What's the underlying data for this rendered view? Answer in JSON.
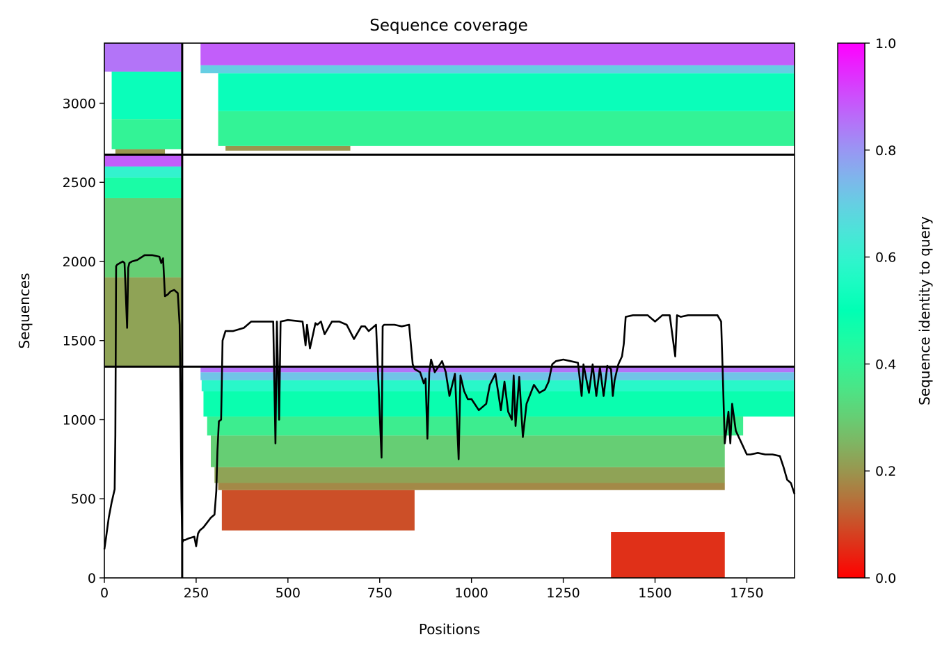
{
  "chart_data": {
    "type": "heatmap",
    "title": "Sequence coverage",
    "xlabel": "Positions",
    "ylabel": "Sequences",
    "xlim": [
      0,
      1880
    ],
    "ylim": [
      0,
      3380
    ],
    "xticks": [
      0,
      250,
      500,
      750,
      1000,
      1250,
      1500,
      1750
    ],
    "yticks": [
      0,
      500,
      1000,
      1500,
      2000,
      2500,
      3000
    ],
    "colorbar": {
      "label": "Sequence identity to query",
      "range": [
        0,
        1
      ],
      "ticks": [
        "0.0",
        "0.2",
        "0.4",
        "0.6",
        "0.8",
        "1.0"
      ],
      "colormap": "rainbow_r"
    },
    "separators": {
      "vertical": [
        212
      ],
      "horizontal": [
        1335,
        2675
      ]
    },
    "blocks": [
      {
        "x0": 320,
        "x1": 845,
        "y0": 300,
        "y1": 555,
        "id": 0.1
      },
      {
        "x0": 1380,
        "x1": 1690,
        "y0": 0,
        "y1": 290,
        "id": 0.06
      },
      {
        "x0": 310,
        "x1": 1690,
        "y0": 555,
        "y1": 600,
        "id": 0.18
      },
      {
        "x0": 300,
        "x1": 1690,
        "y0": 600,
        "y1": 700,
        "id": 0.22
      },
      {
        "x0": 290,
        "x1": 1690,
        "y0": 700,
        "y1": 900,
        "id": 0.3
      },
      {
        "x0": 280,
        "x1": 1740,
        "y0": 900,
        "y1": 1020,
        "id": 0.38
      },
      {
        "x0": 270,
        "x1": 1880,
        "y0": 1020,
        "y1": 1180,
        "id": 0.48
      },
      {
        "x0": 265,
        "x1": 1880,
        "y0": 1180,
        "y1": 1250,
        "id": 0.58
      },
      {
        "x0": 262,
        "x1": 1880,
        "y0": 1250,
        "y1": 1300,
        "id": 0.72
      },
      {
        "x0": 262,
        "x1": 1880,
        "y0": 1300,
        "y1": 1335,
        "id": 0.85
      },
      {
        "x0": 0,
        "x1": 212,
        "y0": 1335,
        "y1": 1900,
        "id": 0.22
      },
      {
        "x0": 0,
        "x1": 212,
        "y0": 1900,
        "y1": 2400,
        "id": 0.3
      },
      {
        "x0": 0,
        "x1": 212,
        "y0": 2400,
        "y1": 2530,
        "id": 0.45
      },
      {
        "x0": 0,
        "x1": 212,
        "y0": 2530,
        "y1": 2600,
        "id": 0.6
      },
      {
        "x0": 0,
        "x1": 212,
        "y0": 2600,
        "y1": 2675,
        "id": 0.88
      },
      {
        "x0": 30,
        "x1": 165,
        "y0": 2675,
        "y1": 2710,
        "id": 0.2
      },
      {
        "x0": 20,
        "x1": 212,
        "y0": 2710,
        "y1": 2900,
        "id": 0.4
      },
      {
        "x0": 20,
        "x1": 212,
        "y0": 2900,
        "y1": 3200,
        "id": 0.52
      },
      {
        "x0": 0,
        "x1": 212,
        "y0": 3200,
        "y1": 3380,
        "id": 0.85
      },
      {
        "x0": 330,
        "x1": 670,
        "y0": 2700,
        "y1": 2730,
        "id": 0.2
      },
      {
        "x0": 310,
        "x1": 1880,
        "y0": 2730,
        "y1": 2950,
        "id": 0.4
      },
      {
        "x0": 310,
        "x1": 1880,
        "y0": 2950,
        "y1": 3190,
        "id": 0.52
      },
      {
        "x0": 262,
        "x1": 1880,
        "y0": 3190,
        "y1": 3240,
        "id": 0.7
      },
      {
        "x0": 262,
        "x1": 1880,
        "y0": 3240,
        "y1": 3380,
        "id": 0.88
      }
    ],
    "coverage_line": {
      "name": "",
      "color": "#000000",
      "x": [
        0,
        5,
        12,
        20,
        28,
        30,
        32,
        35,
        50,
        55,
        62,
        65,
        68,
        75,
        90,
        110,
        130,
        150,
        155,
        160,
        165,
        172,
        180,
        190,
        200,
        205,
        208,
        210,
        212,
        214,
        216,
        220,
        230,
        245,
        250,
        255,
        260,
        270,
        280,
        290,
        300,
        305,
        308,
        312,
        318,
        322,
        330,
        350,
        380,
        400,
        430,
        460,
        466,
        470,
        476,
        480,
        500,
        540,
        548,
        552,
        560,
        575,
        580,
        590,
        600,
        620,
        640,
        660,
        680,
        700,
        710,
        720,
        740,
        755,
        758,
        762,
        770,
        790,
        810,
        830,
        840,
        845,
        860,
        870,
        875,
        880,
        885,
        890,
        900,
        920,
        930,
        940,
        955,
        965,
        970,
        980,
        990,
        1000,
        1020,
        1040,
        1050,
        1065,
        1080,
        1090,
        1100,
        1110,
        1115,
        1120,
        1130,
        1140,
        1150,
        1160,
        1170,
        1185,
        1200,
        1210,
        1220,
        1230,
        1250,
        1270,
        1290,
        1300,
        1305,
        1310,
        1320,
        1330,
        1340,
        1350,
        1360,
        1370,
        1380,
        1385,
        1390,
        1400,
        1410,
        1415,
        1420,
        1440,
        1460,
        1480,
        1500,
        1520,
        1540,
        1555,
        1560,
        1570,
        1590,
        1620,
        1650,
        1670,
        1680,
        1685,
        1690,
        1700,
        1705,
        1710,
        1720,
        1730,
        1750,
        1760,
        1780,
        1800,
        1820,
        1840,
        1850,
        1860,
        1870,
        1880
      ],
      "y": [
        180,
        260,
        380,
        480,
        560,
        900,
        1970,
        1980,
        2000,
        1990,
        1580,
        1960,
        1990,
        2000,
        2010,
        2040,
        2040,
        2030,
        1990,
        2020,
        1780,
        1790,
        1810,
        1820,
        1800,
        1600,
        1000,
        500,
        250,
        230,
        240,
        240,
        250,
        260,
        200,
        280,
        300,
        320,
        350,
        380,
        400,
        550,
        800,
        990,
        1000,
        1500,
        1560,
        1560,
        1580,
        1620,
        1620,
        1620,
        850,
        1620,
        1000,
        1620,
        1630,
        1620,
        1470,
        1600,
        1450,
        1610,
        1600,
        1620,
        1540,
        1620,
        1620,
        1600,
        1510,
        1590,
        1590,
        1560,
        1600,
        760,
        1590,
        1600,
        1600,
        1600,
        1590,
        1600,
        1350,
        1320,
        1300,
        1230,
        1260,
        880,
        1300,
        1380,
        1300,
        1370,
        1300,
        1150,
        1290,
        750,
        1280,
        1180,
        1130,
        1130,
        1060,
        1100,
        1220,
        1290,
        1060,
        1240,
        1050,
        1000,
        1280,
        960,
        1270,
        890,
        1100,
        1160,
        1220,
        1170,
        1190,
        1240,
        1350,
        1370,
        1380,
        1370,
        1360,
        1150,
        1350,
        1290,
        1170,
        1350,
        1150,
        1330,
        1150,
        1340,
        1320,
        1150,
        1250,
        1350,
        1400,
        1480,
        1650,
        1660,
        1660,
        1660,
        1620,
        1660,
        1660,
        1400,
        1660,
        1650,
        1660,
        1660,
        1660,
        1660,
        1620,
        1250,
        850,
        1050,
        850,
        1100,
        930,
        880,
        780,
        780,
        790,
        780,
        780,
        770,
        700,
        620,
        600,
        530
      ]
    }
  }
}
